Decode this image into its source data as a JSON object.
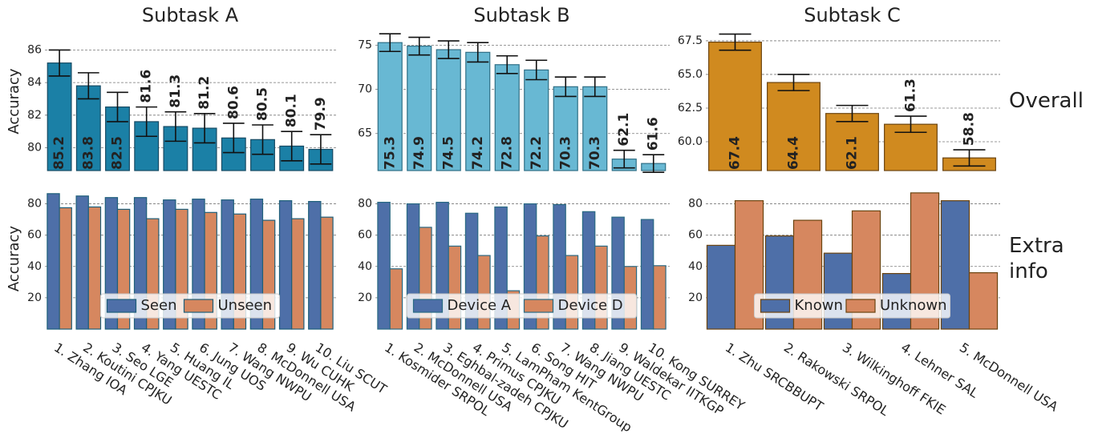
{
  "chart_data": [
    {
      "type": "bar",
      "title": "Subtask A",
      "ylabel": "Accuracy",
      "color": "#1b80a6",
      "edgecolor": "#174a63",
      "values": [
        85.2,
        83.8,
        82.5,
        81.6,
        81.3,
        81.2,
        80.6,
        80.5,
        80.1,
        79.9
      ],
      "errors": [
        0.8,
        0.8,
        0.9,
        0.9,
        0.9,
        0.9,
        0.9,
        0.9,
        0.9,
        0.9
      ],
      "ylim": [
        78.6,
        87.1
      ],
      "yticks": [
        80,
        82,
        84,
        86
      ],
      "grid": true
    },
    {
      "type": "bar",
      "title": "Subtask B",
      "color": "#68b8d3",
      "edgecolor": "#2f6f86",
      "values": [
        75.3,
        74.9,
        74.5,
        74.2,
        72.8,
        72.2,
        70.3,
        70.3,
        62.1,
        61.6
      ],
      "errors": [
        1.0,
        1.0,
        1.0,
        1.1,
        1.0,
        1.1,
        1.1,
        1.1,
        1.0,
        1.0
      ],
      "ylim": [
        60.8,
        76.5
      ],
      "yticks": [
        65,
        70,
        75
      ],
      "grid": true
    },
    {
      "type": "bar",
      "title": "Subtask C",
      "side_label": "Overall",
      "color": "#d08a1f",
      "edgecolor": "#6b4410",
      "values": [
        67.4,
        64.4,
        62.1,
        61.3,
        58.8
      ],
      "errors": [
        0.6,
        0.6,
        0.6,
        0.6,
        0.6
      ],
      "ylim": [
        57.86,
        68.15
      ],
      "yticks": [
        {
          "value": 60,
          "label": "60.0"
        },
        {
          "value": 62.5,
          "label": "62.5"
        },
        {
          "value": 65,
          "label": "65.0"
        },
        {
          "value": 67.5,
          "label": "67.5"
        }
      ],
      "grid": true
    },
    {
      "type": "grouped_bar",
      "ylabel": "Accuracy",
      "edgecolor": "#1e5f7a",
      "categories": [
        "1. Zhang IOA",
        "2. Koutini CPJKU",
        "3. Seo LGE",
        "4. Yang UESTC",
        "5. Huang IL",
        "6. Jung UOS",
        "7. Wang NWPU",
        "8. McDonnell USA",
        "9. Wu CUHK",
        "10. Liu SCUT"
      ],
      "series": [
        {
          "name": "Seen",
          "color": "#4e6fa8",
          "values": [
            86.5,
            85,
            84,
            84,
            82.5,
            83,
            82.5,
            83,
            82,
            81.5
          ]
        },
        {
          "name": "Unseen",
          "color": "#d6875f",
          "values": [
            77.5,
            78,
            76.5,
            70.5,
            76.5,
            74.5,
            73.5,
            69.5,
            70.5,
            71.5
          ]
        }
      ],
      "ylim": [
        0,
        90
      ],
      "yticks": [
        20,
        40,
        60,
        80
      ],
      "grid": true,
      "legend": "lower center"
    },
    {
      "type": "grouped_bar",
      "edgecolor": "#2a6a84",
      "categories": [
        "1. Kosmider SRPOL",
        "2. McDonnell USA",
        "3. Eghbal-zadeh CPJKU",
        "4. Primus CPJKU",
        "5. LamPham KentGroup",
        "6. Song HIT",
        "7. Wang NWPU",
        "8. Jiang UESTC",
        "9. Waldekar IITKGP",
        "10. Kong SURREY"
      ],
      "series": [
        {
          "name": "Device A",
          "color": "#4e6fa8",
          "values": [
            81,
            80,
            81,
            74,
            78,
            80,
            79.5,
            75,
            71.5,
            70
          ]
        },
        {
          "name": "Device D",
          "color": "#d6875f",
          "values": [
            38.5,
            65,
            53,
            47,
            24.5,
            59.5,
            47,
            53,
            40,
            40.5
          ]
        }
      ],
      "ylim": [
        0,
        90
      ],
      "yticks": [
        20,
        40,
        60,
        80
      ],
      "grid": true,
      "legend": "lower center"
    },
    {
      "type": "grouped_bar",
      "side_label": "Extra info",
      "edgecolor": "#6b4410",
      "categories": [
        "1. Zhu SRCBBUPT",
        "2. Rakowski SRPOL",
        "3. Wilkinghoff FKIE",
        "4. Lehner SAL",
        "5. McDonnell USA"
      ],
      "series": [
        {
          "name": "Known",
          "color": "#4e6fa8",
          "values": [
            53.5,
            59.5,
            48.5,
            35.5,
            82
          ]
        },
        {
          "name": "Unknown",
          "color": "#d6875f",
          "values": [
            82,
            69.5,
            75.5,
            87,
            36
          ]
        }
      ],
      "ylim": [
        0,
        90
      ],
      "yticks": [
        20,
        40,
        60,
        80
      ],
      "grid": true,
      "legend": "lower center"
    }
  ]
}
